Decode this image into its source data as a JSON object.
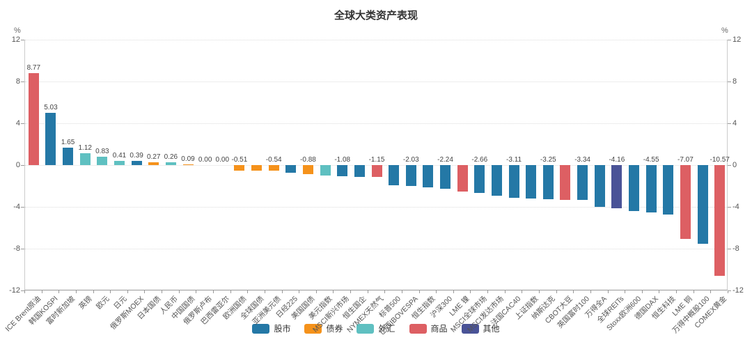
{
  "title": "全球大类资产表现",
  "axis": {
    "unit_left": "%",
    "unit_right": "%"
  },
  "legend": {
    "items": [
      {
        "key": "stock",
        "label": "股市",
        "color": "#2478A6"
      },
      {
        "key": "bond",
        "label": "债券",
        "color": "#F5921B"
      },
      {
        "key": "fx",
        "label": "外汇",
        "color": "#5FC0C1"
      },
      {
        "key": "commodity",
        "label": "商品",
        "color": "#DD5F63"
      },
      {
        "key": "other",
        "label": "其他",
        "color": "#4A5397"
      }
    ]
  },
  "chart_data": {
    "type": "bar",
    "title": "全球大类资产表现",
    "xlabel": "",
    "ylabel": "%",
    "ylim": [
      -12,
      12
    ],
    "yticks": [
      12,
      8,
      4,
      0,
      -4,
      -8,
      -12
    ],
    "grid": "dotted-horizontal",
    "legend_position": "bottom",
    "bars": [
      {
        "name": "ICE Brent原油",
        "value": 8.77,
        "display_label": "8.77",
        "group": "commodity"
      },
      {
        "name": "韩国KOSPI",
        "value": 5.03,
        "display_label": "5.03",
        "group": "stock"
      },
      {
        "name": "富时新加坡",
        "value": 1.65,
        "display_label": "1.65",
        "group": "stock"
      },
      {
        "name": "英镑",
        "value": 1.12,
        "display_label": "1.12",
        "group": "fx"
      },
      {
        "name": "欧元",
        "value": 0.83,
        "display_label": "0.83",
        "group": "fx"
      },
      {
        "name": "日元",
        "value": 0.41,
        "display_label": "0.41",
        "group": "fx"
      },
      {
        "name": "俄罗斯MOEX",
        "value": 0.39,
        "display_label": "0.39",
        "group": "stock"
      },
      {
        "name": "日本国债",
        "value": 0.27,
        "display_label": "0.27",
        "group": "bond"
      },
      {
        "name": "人民币",
        "value": 0.26,
        "display_label": "0.26",
        "group": "fx"
      },
      {
        "name": "中国国债",
        "value": 0.09,
        "display_label": "0.09",
        "group": "bond"
      },
      {
        "name": "俄罗斯卢布",
        "value": 0.0,
        "display_label": "0.00",
        "group": "fx"
      },
      {
        "name": "巴西雷亚尔",
        "value": 0.0,
        "display_label": "0.00",
        "group": "fx"
      },
      {
        "name": "欧洲国债",
        "value": -0.51,
        "display_label": "-0.51",
        "group": "bond"
      },
      {
        "name": "全球国债",
        "value": -0.52,
        "display_label": null,
        "group": "bond"
      },
      {
        "name": "亚洲美元债",
        "value": -0.54,
        "display_label": "-0.54",
        "group": "bond"
      },
      {
        "name": "日经225",
        "value": -0.72,
        "display_label": null,
        "group": "stock"
      },
      {
        "name": "美国国债",
        "value": -0.88,
        "display_label": "-0.88",
        "group": "bond"
      },
      {
        "name": "美元指数",
        "value": -0.99,
        "display_label": null,
        "group": "fx"
      },
      {
        "name": "MSCI新兴市场",
        "value": -1.08,
        "display_label": "-1.08",
        "group": "stock"
      },
      {
        "name": "恒生国企",
        "value": -1.12,
        "display_label": null,
        "group": "stock"
      },
      {
        "name": "NYMEX天然气",
        "value": -1.15,
        "display_label": "-1.15",
        "group": "commodity"
      },
      {
        "name": "标普500",
        "value": -1.9,
        "display_label": null,
        "group": "stock"
      },
      {
        "name": "巴西IBOVESPA",
        "value": -2.03,
        "display_label": "-2.03",
        "group": "stock"
      },
      {
        "name": "恒生指数",
        "value": -2.12,
        "display_label": null,
        "group": "stock"
      },
      {
        "name": "沪深300",
        "value": -2.24,
        "display_label": "-2.24",
        "group": "stock"
      },
      {
        "name": "LME 镍",
        "value": -2.5,
        "display_label": null,
        "group": "commodity"
      },
      {
        "name": "MSCI全球市场",
        "value": -2.66,
        "display_label": "-2.66",
        "group": "stock"
      },
      {
        "name": "MSCI发达市场",
        "value": -2.9,
        "display_label": null,
        "group": "stock"
      },
      {
        "name": "法国CAC40",
        "value": -3.11,
        "display_label": "-3.11",
        "group": "stock"
      },
      {
        "name": "上证指数",
        "value": -3.2,
        "display_label": null,
        "group": "stock"
      },
      {
        "name": "纳斯达克",
        "value": -3.25,
        "display_label": "-3.25",
        "group": "stock"
      },
      {
        "name": "CBOT大豆",
        "value": -3.3,
        "display_label": null,
        "group": "commodity"
      },
      {
        "name": "英国富时100",
        "value": -3.34,
        "display_label": "-3.34",
        "group": "stock"
      },
      {
        "name": "万得全A",
        "value": -4.0,
        "display_label": null,
        "group": "stock"
      },
      {
        "name": "全球REITs",
        "value": -4.16,
        "display_label": "-4.16",
        "group": "other"
      },
      {
        "name": "Stoxx欧洲600",
        "value": -4.4,
        "display_label": null,
        "group": "stock"
      },
      {
        "name": "德国DAX",
        "value": -4.55,
        "display_label": "-4.55",
        "group": "stock"
      },
      {
        "name": "恒生科技",
        "value": -4.75,
        "display_label": null,
        "group": "stock"
      },
      {
        "name": "LME 铜",
        "value": -7.07,
        "display_label": "-7.07",
        "group": "commodity"
      },
      {
        "name": "万得中概股100",
        "value": -7.5,
        "display_label": null,
        "group": "stock"
      },
      {
        "name": "COMEX黄金",
        "value": -10.57,
        "display_label": "-10.57",
        "group": "commodity"
      }
    ]
  }
}
